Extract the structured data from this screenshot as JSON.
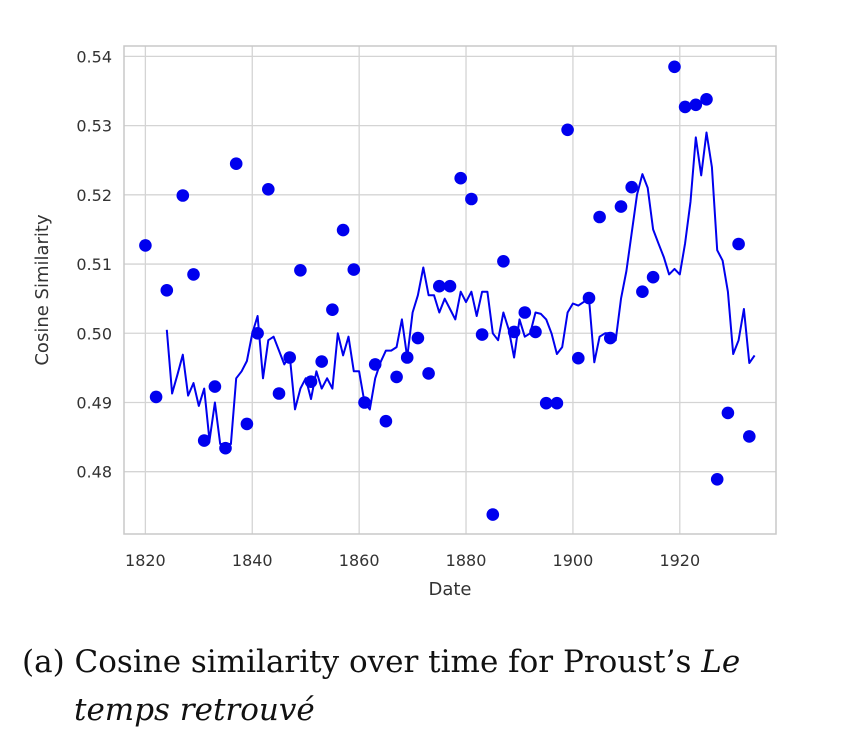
{
  "chart_data": {
    "type": "line",
    "xlabel": "Date",
    "ylabel": "Cosine Similarity",
    "xlim": [
      1816,
      1938
    ],
    "ylim": [
      0.471,
      0.5415
    ],
    "x_ticks": [
      1820,
      1840,
      1860,
      1880,
      1900,
      1920
    ],
    "y_ticks": [
      0.48,
      0.49,
      0.5,
      0.51,
      0.52,
      0.53,
      0.54
    ],
    "x_tick_labels": [
      "1820",
      "1840",
      "1860",
      "1880",
      "1900",
      "1920"
    ],
    "y_tick_labels": [
      "0.48",
      "0.49",
      "0.50",
      "0.51",
      "0.52",
      "0.53",
      "0.54"
    ],
    "grid": true,
    "color": "#0000ee",
    "series": [
      {
        "kind": "scatter",
        "points": [
          [
            1820,
            0.5127
          ],
          [
            1822,
            0.4908
          ],
          [
            1824,
            0.5062
          ],
          [
            1827,
            0.5199
          ],
          [
            1829,
            0.5085
          ],
          [
            1831,
            0.4845
          ],
          [
            1833,
            0.4923
          ],
          [
            1835,
            0.4834
          ],
          [
            1837,
            0.5245
          ],
          [
            1839,
            0.4869
          ],
          [
            1841,
            0.5
          ],
          [
            1843,
            0.5208
          ],
          [
            1845,
            0.4913
          ],
          [
            1847,
            0.4965
          ],
          [
            1849,
            0.5091
          ],
          [
            1851,
            0.493
          ],
          [
            1853,
            0.4959
          ],
          [
            1855,
            0.5034
          ],
          [
            1857,
            0.5149
          ],
          [
            1859,
            0.5092
          ],
          [
            1861,
            0.49
          ],
          [
            1863,
            0.4955
          ],
          [
            1865,
            0.4873
          ],
          [
            1867,
            0.4937
          ],
          [
            1869,
            0.4965
          ],
          [
            1871,
            0.4993
          ],
          [
            1873,
            0.4942
          ],
          [
            1875,
            0.5068
          ],
          [
            1877,
            0.5068
          ],
          [
            1879,
            0.5224
          ],
          [
            1881,
            0.5194
          ],
          [
            1883,
            0.4998
          ],
          [
            1885,
            0.4738
          ],
          [
            1887,
            0.5104
          ],
          [
            1889,
            0.5002
          ],
          [
            1891,
            0.503
          ],
          [
            1893,
            0.5002
          ],
          [
            1895,
            0.4899
          ],
          [
            1897,
            0.4899
          ],
          [
            1899,
            0.5294
          ],
          [
            1901,
            0.4964
          ],
          [
            1903,
            0.5051
          ],
          [
            1905,
            0.5168
          ],
          [
            1907,
            0.4993
          ],
          [
            1909,
            0.5183
          ],
          [
            1911,
            0.5211
          ],
          [
            1913,
            0.506
          ],
          [
            1915,
            0.5081
          ],
          [
            1919,
            0.5385
          ],
          [
            1921,
            0.5327
          ],
          [
            1923,
            0.533
          ],
          [
            1925,
            0.5338
          ],
          [
            1927,
            0.4789
          ],
          [
            1929,
            0.4885
          ],
          [
            1931,
            0.5129
          ],
          [
            1933,
            0.4851
          ]
        ]
      },
      {
        "kind": "line",
        "points": [
          [
            1824,
            0.5005
          ],
          [
            1825,
            0.4913
          ],
          [
            1826,
            0.494
          ],
          [
            1827,
            0.4969
          ],
          [
            1828,
            0.491
          ],
          [
            1829,
            0.4928
          ],
          [
            1830,
            0.4895
          ],
          [
            1831,
            0.492
          ],
          [
            1832,
            0.4845
          ],
          [
            1833,
            0.49
          ],
          [
            1834,
            0.484
          ],
          [
            1835,
            0.484
          ],
          [
            1836,
            0.484
          ],
          [
            1837,
            0.4935
          ],
          [
            1838,
            0.4945
          ],
          [
            1839,
            0.496
          ],
          [
            1840,
            0.5
          ],
          [
            1841,
            0.5025
          ],
          [
            1842,
            0.4935
          ],
          [
            1843,
            0.499
          ],
          [
            1844,
            0.4995
          ],
          [
            1845,
            0.4975
          ],
          [
            1846,
            0.4955
          ],
          [
            1847,
            0.4968
          ],
          [
            1848,
            0.489
          ],
          [
            1849,
            0.492
          ],
          [
            1850,
            0.4935
          ],
          [
            1851,
            0.4905
          ],
          [
            1852,
            0.4945
          ],
          [
            1853,
            0.492
          ],
          [
            1854,
            0.4935
          ],
          [
            1855,
            0.492
          ],
          [
            1856,
            0.5
          ],
          [
            1857,
            0.4968
          ],
          [
            1858,
            0.4995
          ],
          [
            1859,
            0.4945
          ],
          [
            1860,
            0.4945
          ],
          [
            1861,
            0.49
          ],
          [
            1862,
            0.489
          ],
          [
            1863,
            0.4935
          ],
          [
            1864,
            0.4958
          ],
          [
            1865,
            0.4975
          ],
          [
            1866,
            0.4975
          ],
          [
            1867,
            0.498
          ],
          [
            1868,
            0.502
          ],
          [
            1869,
            0.4965
          ],
          [
            1870,
            0.503
          ],
          [
            1871,
            0.5055
          ],
          [
            1872,
            0.5095
          ],
          [
            1873,
            0.5055
          ],
          [
            1874,
            0.5055
          ],
          [
            1875,
            0.503
          ],
          [
            1876,
            0.505
          ],
          [
            1877,
            0.5035
          ],
          [
            1878,
            0.502
          ],
          [
            1879,
            0.506
          ],
          [
            1880,
            0.5045
          ],
          [
            1881,
            0.506
          ],
          [
            1882,
            0.5025
          ],
          [
            1883,
            0.506
          ],
          [
            1884,
            0.506
          ],
          [
            1885,
            0.5
          ],
          [
            1886,
            0.499
          ],
          [
            1887,
            0.503
          ],
          [
            1888,
            0.5005
          ],
          [
            1889,
            0.4965
          ],
          [
            1890,
            0.502
          ],
          [
            1891,
            0.4995
          ],
          [
            1892,
            0.5
          ],
          [
            1893,
            0.503
          ],
          [
            1894,
            0.5028
          ],
          [
            1895,
            0.502
          ],
          [
            1896,
            0.5
          ],
          [
            1897,
            0.497
          ],
          [
            1898,
            0.498
          ],
          [
            1899,
            0.503
          ],
          [
            1900,
            0.5043
          ],
          [
            1901,
            0.504
          ],
          [
            1902,
            0.5045
          ],
          [
            1903,
            0.505
          ],
          [
            1904,
            0.4958
          ],
          [
            1905,
            0.4995
          ],
          [
            1906,
            0.5
          ],
          [
            1907,
            0.5
          ],
          [
            1908,
            0.499
          ],
          [
            1909,
            0.505
          ],
          [
            1910,
            0.509
          ],
          [
            1911,
            0.5145
          ],
          [
            1912,
            0.52
          ],
          [
            1913,
            0.523
          ],
          [
            1914,
            0.521
          ],
          [
            1915,
            0.515
          ],
          [
            1916,
            0.513
          ],
          [
            1917,
            0.511
          ],
          [
            1918,
            0.5085
          ],
          [
            1919,
            0.5093
          ],
          [
            1920,
            0.5085
          ],
          [
            1921,
            0.513
          ],
          [
            1922,
            0.519
          ],
          [
            1923,
            0.5283
          ],
          [
            1924,
            0.5228
          ],
          [
            1925,
            0.529
          ],
          [
            1926,
            0.524
          ],
          [
            1927,
            0.512
          ],
          [
            1928,
            0.5105
          ],
          [
            1929,
            0.506
          ],
          [
            1930,
            0.497
          ],
          [
            1931,
            0.499
          ],
          [
            1932,
            0.5035
          ],
          [
            1933,
            0.4957
          ],
          [
            1934,
            0.4968
          ]
        ]
      }
    ]
  },
  "caption": {
    "line1_prefix": "(a) Cosine similarity over time for Proust’s ",
    "line1_title": "Le",
    "line2_title": "temps retrouvé"
  }
}
